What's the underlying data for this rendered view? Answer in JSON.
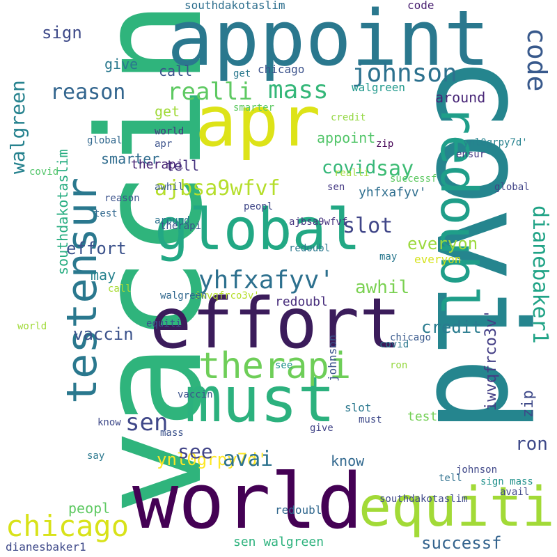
{
  "words": [
    {
      "text": "vaccin",
      "color": "#2fb47c"
    },
    {
      "text": "covid",
      "color": "#25858e"
    },
    {
      "text": "appoint",
      "color": "#2a788e"
    },
    {
      "text": "effort",
      "color": "#3b1c5b"
    },
    {
      "text": "world",
      "color": "#440154"
    },
    {
      "text": "must",
      "color": "#2cb17e"
    },
    {
      "text": "testensur",
      "color": "#2a788e"
    },
    {
      "text": "redoubl",
      "color": "#1f9e89"
    },
    {
      "text": "apr",
      "color": "#dde318"
    },
    {
      "text": "global",
      "color": "#22a884"
    },
    {
      "text": "equiti",
      "color": "#a2da37"
    },
    {
      "text": "therapi",
      "color": "#6ece58"
    },
    {
      "text": "chicago",
      "color": "#d8e219"
    },
    {
      "text": "dianebaker1",
      "color": "#20a386"
    },
    {
      "text": "johnson",
      "color": "#2c718e"
    },
    {
      "text": "mass",
      "color": "#35b779"
    },
    {
      "text": "realli",
      "color": "#5ec962"
    },
    {
      "text": "code",
      "color": "#38598c"
    },
    {
      "text": "walgreen",
      "color": "#26828e"
    },
    {
      "text": "ajbsa9wfvf",
      "color": "#b5de2b"
    },
    {
      "text": "yhfxafyv'",
      "color": "#2d708e"
    },
    {
      "text": "say",
      "color": "#3dbc74"
    },
    {
      "text": "covid",
      "color": "#35b779"
    },
    {
      "text": "slot",
      "color": "#404688"
    },
    {
      "text": "everyon",
      "color": "#9bd93c"
    },
    {
      "text": "southdakotaslim",
      "color": "#27ad81"
    },
    {
      "text": "reason",
      "color": "#32658e"
    },
    {
      "text": "ynl0grpy7d'",
      "color": "#fde725"
    },
    {
      "text": "successf",
      "color": "#33638d"
    },
    {
      "text": "sen",
      "color": "#3f4788"
    },
    {
      "text": "avai",
      "color": "#2c728e"
    },
    {
      "text": "ron",
      "color": "#3e4989"
    },
    {
      "text": "see",
      "color": "#414487"
    },
    {
      "text": "credit",
      "color": "#297b8e"
    },
    {
      "text": "awhil",
      "color": "#7ad151"
    },
    {
      "text": "iwvqfrco3v'",
      "color": "#433e85"
    },
    {
      "text": "vaccin",
      "color": "#3b528b"
    },
    {
      "text": "know",
      "color": "#31688e"
    },
    {
      "text": "give",
      "color": "#2a788e"
    },
    {
      "text": "zip",
      "color": "#3e4989"
    },
    {
      "text": "smarter",
      "color": "#2f6c8e"
    },
    {
      "text": "peopl",
      "color": "#5ec962"
    },
    {
      "text": "call",
      "color": "#3b528b"
    },
    {
      "text": "test",
      "color": "#73d056"
    },
    {
      "text": "get",
      "color": "#a0da39"
    },
    {
      "text": "around",
      "color": "#482677"
    },
    {
      "text": "tell",
      "color": "#46327e"
    },
    {
      "text": "sign",
      "color": "#3e4a89"
    },
    {
      "text": "may",
      "color": "#26828e"
    },
    {
      "text": "walgreen",
      "color": "#1f988b"
    },
    {
      "text": "johnson",
      "color": "#3b528b"
    },
    {
      "text": "effort",
      "color": "#3b528b"
    },
    {
      "text": "sen walgreen",
      "color": "#2db27d"
    },
    {
      "text": "southdakotaslim",
      "color": "#2e6f8e"
    },
    {
      "text": "redoubl",
      "color": "#472d7b"
    },
    {
      "text": "southdakotaslim",
      "color": "#3f4889"
    },
    {
      "text": "redoubl",
      "color": "#31688e"
    },
    {
      "text": "johnson",
      "color": "#3f4788"
    },
    {
      "text": "ajbsa9wfvf",
      "color": "#46337e"
    },
    {
      "text": "therapi",
      "color": "#482475"
    },
    {
      "text": "yhfxafyv'",
      "color": "#2e6e8e"
    },
    {
      "text": "appoint",
      "color": "#52c569"
    },
    {
      "text": "global",
      "color": "#31688e"
    },
    {
      "text": "smarter",
      "color": "#5ec962"
    },
    {
      "text": "everyon",
      "color": "#d5e21a"
    },
    {
      "text": "peopl",
      "color": "#3f4788"
    },
    {
      "text": "mass",
      "color": "#3b528b"
    },
    {
      "text": "slot",
      "color": "#2a788e"
    },
    {
      "text": "tell",
      "color": "#2d708e"
    },
    {
      "text": "vaccin",
      "color": "#3b528b"
    },
    {
      "text": "world",
      "color": "#46327e"
    },
    {
      "text": "credit",
      "color": "#93d741"
    },
    {
      "text": "around",
      "color": "#2c728e"
    },
    {
      "text": "awhil",
      "color": "#38598c"
    },
    {
      "text": "call",
      "color": "#a8db34"
    },
    {
      "text": "chicago",
      "color": "#3b528b"
    },
    {
      "text": "code",
      "color": "#481f70"
    },
    {
      "text": "zip",
      "color": "#440154"
    },
    {
      "text": "give",
      "color": "#414487"
    },
    {
      "text": "sign mass",
      "color": "#21918c"
    },
    {
      "text": "avail",
      "color": "#3f4788"
    },
    {
      "text": "get",
      "color": "#2a788e"
    },
    {
      "text": "successf",
      "color": "#5ec962"
    },
    {
      "text": "test",
      "color": "#31688e"
    },
    {
      "text": "ensur",
      "color": "#443983"
    },
    {
      "text": "ron",
      "color": "#95d840"
    },
    {
      "text": "apr",
      "color": "#3b528b"
    },
    {
      "text": "say",
      "color": "#2a788e"
    },
    {
      "text": "know",
      "color": "#3e4989"
    },
    {
      "text": "covid",
      "color": "#52c569"
    },
    {
      "text": "chicago",
      "color": "#38598c"
    },
    {
      "text": "equiti",
      "color": "#3b528b"
    },
    {
      "text": "iwvqfrco3v'",
      "color": "#b5de2b"
    },
    {
      "text": "dianesbaker1",
      "color": "#3e4989"
    },
    {
      "text": "ynl0grpy7d'",
      "color": "#26828e"
    },
    {
      "text": "sen",
      "color": "#443983"
    },
    {
      "text": "must",
      "color": "#3e4989"
    },
    {
      "text": "realli",
      "color": "#9fda3a"
    },
    {
      "text": "see",
      "color": "#21918c"
    },
    {
      "text": "may",
      "color": "#2a788e"
    },
    {
      "text": "therapi",
      "color": "#3b528b"
    },
    {
      "text": "redoubl",
      "color": "#2a788e"
    },
    {
      "text": "global",
      "color": "#414487"
    },
    {
      "text": "world",
      "color": "#a0da39"
    },
    {
      "text": "walgreen",
      "color": "#31688e"
    },
    {
      "text": "reason",
      "color": "#3b528b"
    },
    {
      "text": "covid",
      "color": "#2a788e"
    }
  ]
}
